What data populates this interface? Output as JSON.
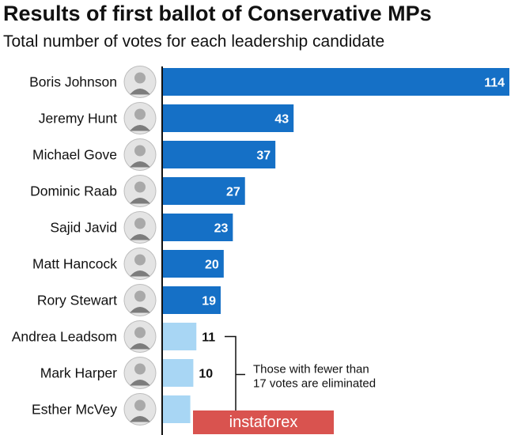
{
  "chart_data": {
    "type": "bar",
    "orientation": "horizontal",
    "title": "Results of first ballot of Conservative MPs",
    "subtitle": "Total number of votes for each leadership candidate",
    "categories": [
      "Boris Johnson",
      "Jeremy Hunt",
      "Michael Gove",
      "Dominic Raab",
      "Sajid Javid",
      "Matt Hancock",
      "Rory Stewart",
      "Andrea Leadsom",
      "Mark Harper",
      "Esther McVey"
    ],
    "values": [
      114,
      43,
      37,
      27,
      23,
      20,
      19,
      11,
      10,
      9
    ],
    "value_labels": [
      "114",
      "43",
      "37",
      "27",
      "23",
      "20",
      "19",
      "11",
      "10",
      ""
    ],
    "eliminated": [
      false,
      false,
      false,
      false,
      false,
      false,
      false,
      true,
      true,
      true
    ],
    "xlim": [
      0,
      114
    ],
    "annotation": [
      "Those with fewer than",
      "17 votes are eliminated"
    ],
    "colors": {
      "qualified": "#1570c6",
      "eliminated": "#a8d6f4",
      "axis": "#111111"
    }
  },
  "watermark": "instaforex"
}
